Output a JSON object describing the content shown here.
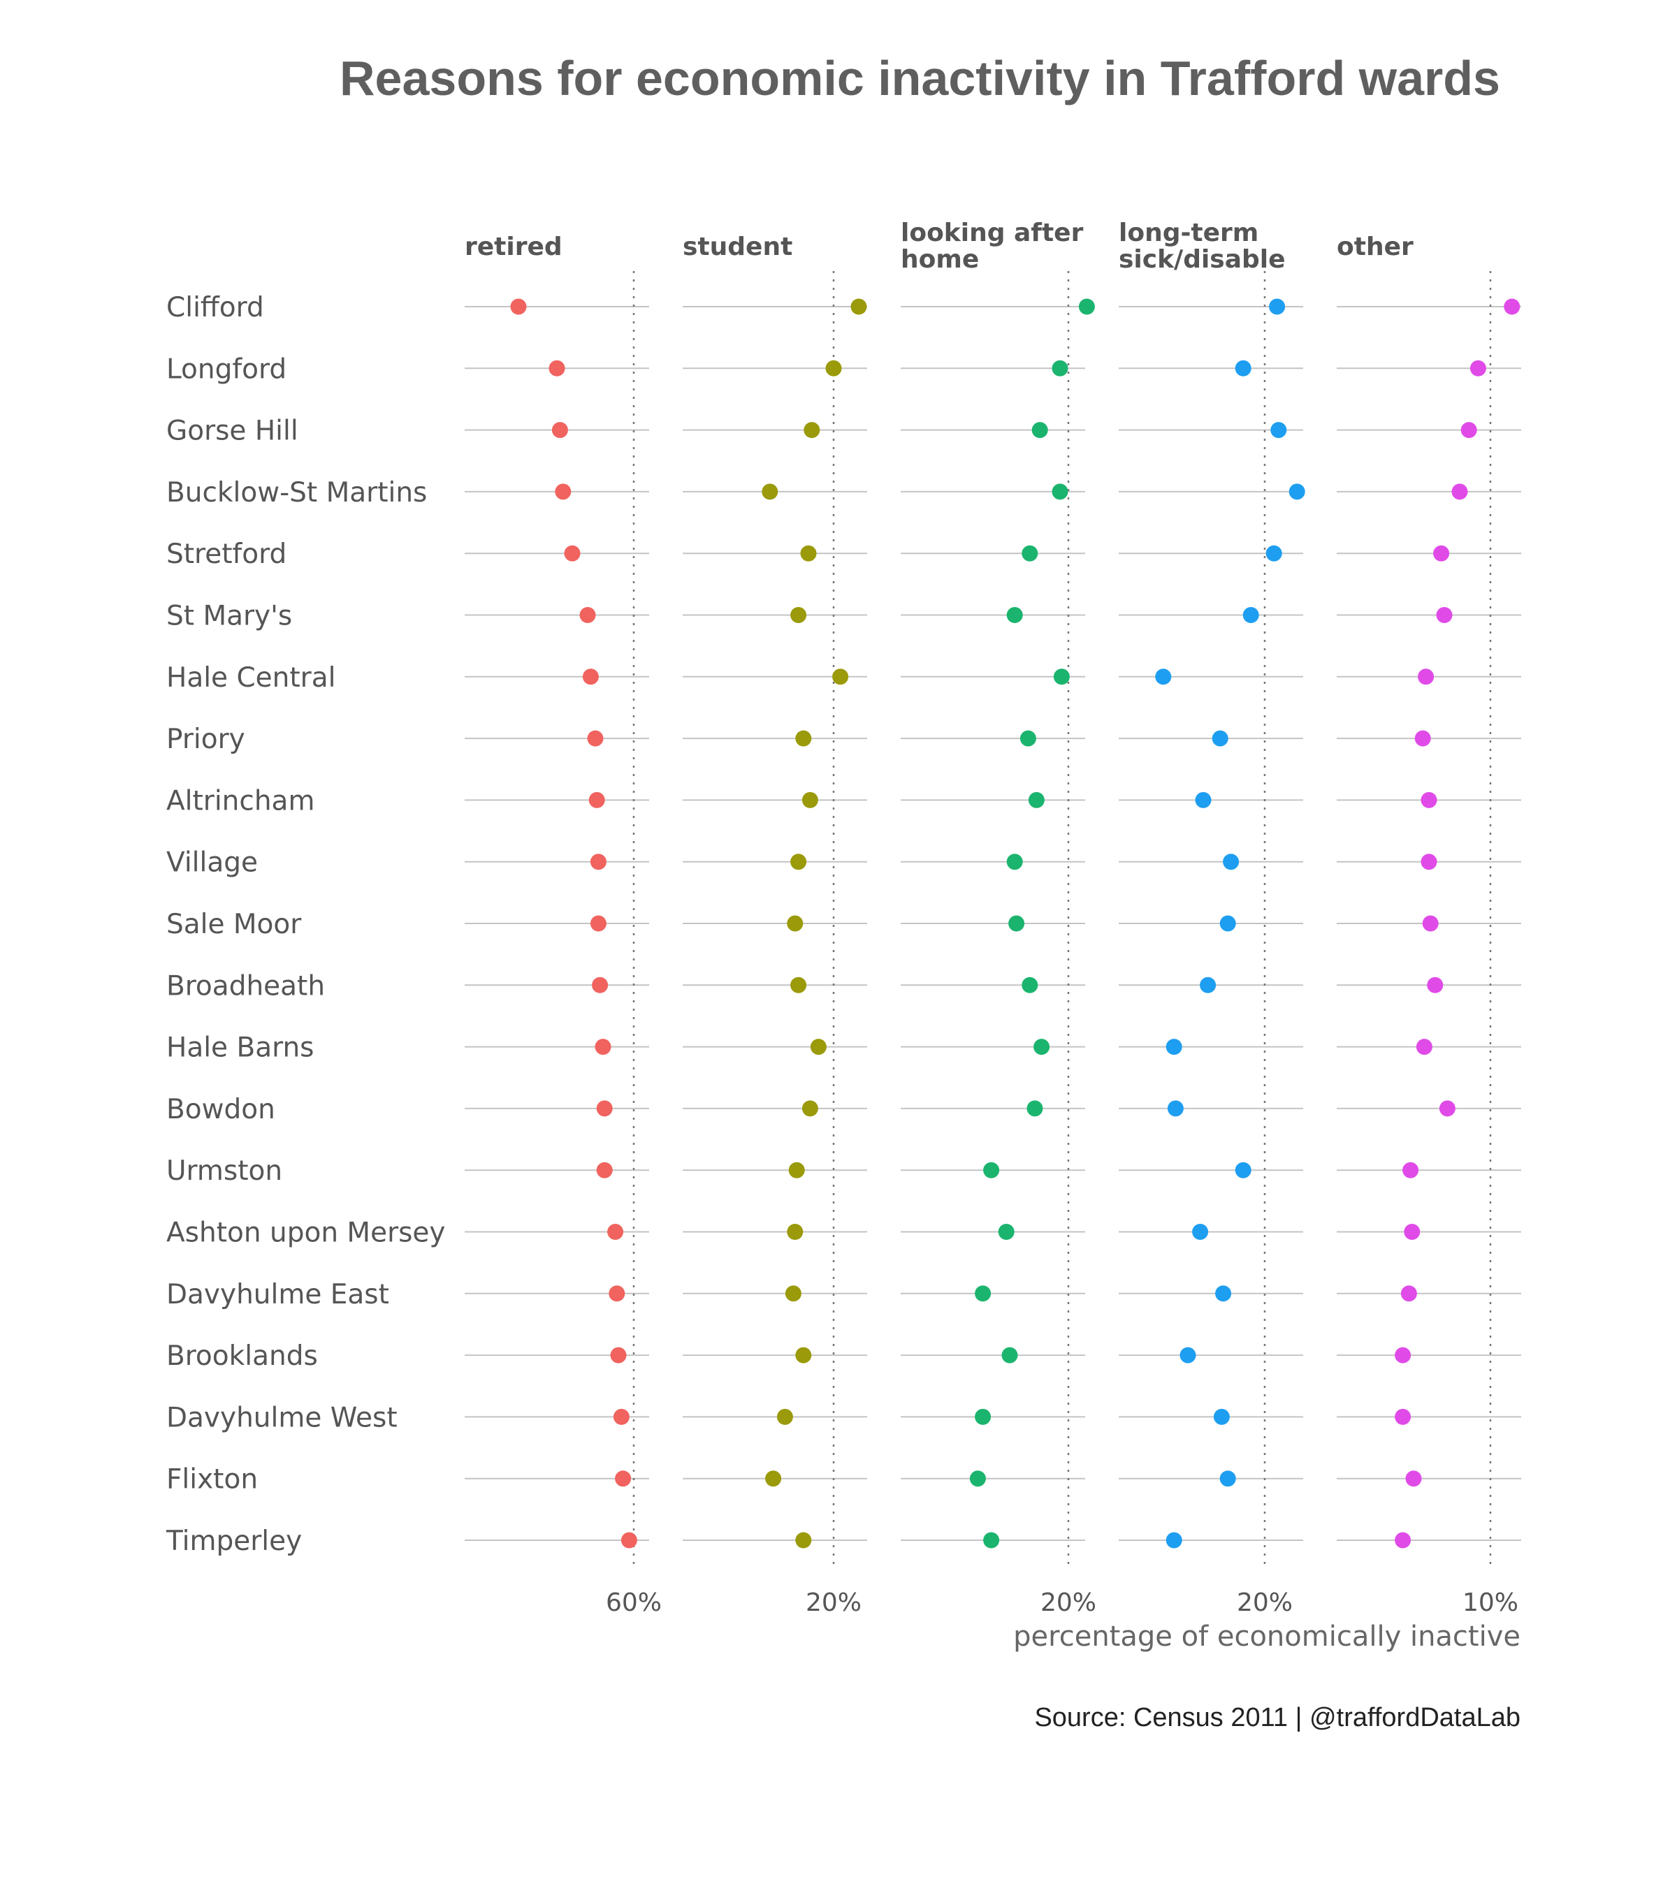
{
  "chart_data": {
    "type": "scatter",
    "title": "Reasons for economic inactivity in Trafford wards",
    "xlabel": "percentage of economically inactive",
    "caption": "Source: Census 2011  |  @traffordDataLab",
    "reverse_x": true,
    "wards": [
      "Clifford",
      "Longford",
      "Gorse Hill",
      "Bucklow-St Martins",
      "Stretford",
      "St Mary's",
      "Hale Central",
      "Priory",
      "Altrincham",
      "Village",
      "Sale Moor",
      "Broadheath",
      "Hale Barns",
      "Bowdon",
      "Urmston",
      "Ashton upon Mersey",
      "Davyhulme East",
      "Brooklands",
      "Davyhulme West",
      "Flixton",
      "Timperley"
    ],
    "facets": [
      {
        "name": "retired",
        "label_lines": [
          "retired"
        ],
        "color": "#F0635F",
        "xlim": [
          71,
          59
        ],
        "ref_value": 60,
        "tick_label": "60%",
        "values": [
          67.5,
          65.0,
          64.8,
          64.6,
          64.0,
          63.0,
          62.8,
          62.5,
          62.4,
          62.3,
          62.3,
          62.2,
          62.0,
          61.9,
          61.9,
          61.2,
          61.1,
          61.0,
          60.8,
          60.7,
          60.3
        ]
      },
      {
        "name": "student",
        "label_lines": [
          "student"
        ],
        "color": "#9A9A0A",
        "xlim": [
          29,
          18
        ],
        "ref_value": 20,
        "tick_label": "20%",
        "values": [
          18.5,
          20.0,
          21.3,
          23.8,
          21.5,
          22.1,
          19.6,
          21.8,
          21.4,
          22.1,
          22.3,
          22.1,
          20.9,
          21.4,
          22.2,
          22.3,
          22.4,
          21.8,
          22.9,
          23.6,
          21.8
        ]
      },
      {
        "name": "looking after home",
        "label_lines": [
          "looking after",
          "home"
        ],
        "color": "#1BB46E",
        "xlim": [
          30,
          19
        ],
        "ref_value": 20,
        "tick_label": "20%",
        "values": [
          18.9,
          20.5,
          21.7,
          20.5,
          22.3,
          23.2,
          20.4,
          22.4,
          21.9,
          23.2,
          23.1,
          22.3,
          21.6,
          22.0,
          24.6,
          23.7,
          25.1,
          23.5,
          25.1,
          25.4,
          24.6
        ]
      },
      {
        "name": "long-term sick/disable",
        "label_lines": [
          "long-term",
          "sick/disable"
        ],
        "color": "#1E9EF0",
        "xlim": [
          29.5,
          17.5
        ],
        "ref_value": 20,
        "tick_label": "20%",
        "values": [
          19.2,
          21.4,
          19.1,
          17.9,
          19.4,
          20.9,
          26.6,
          22.9,
          24.0,
          22.2,
          22.4,
          23.7,
          25.9,
          25.8,
          21.4,
          24.2,
          22.7,
          25.0,
          22.8,
          22.4,
          25.9
        ]
      },
      {
        "name": "other",
        "label_lines": [
          "other"
        ],
        "color": "#E04BE8",
        "xlim": [
          15.0,
          9.0
        ],
        "ref_value": 10,
        "tick_label": "10%",
        "values": [
          9.3,
          10.4,
          10.7,
          11.0,
          11.6,
          11.5,
          12.1,
          12.2,
          12.0,
          12.0,
          11.95,
          11.8,
          12.15,
          11.4,
          12.6,
          12.55,
          12.65,
          12.85,
          12.85,
          12.5,
          12.85
        ]
      }
    ]
  }
}
